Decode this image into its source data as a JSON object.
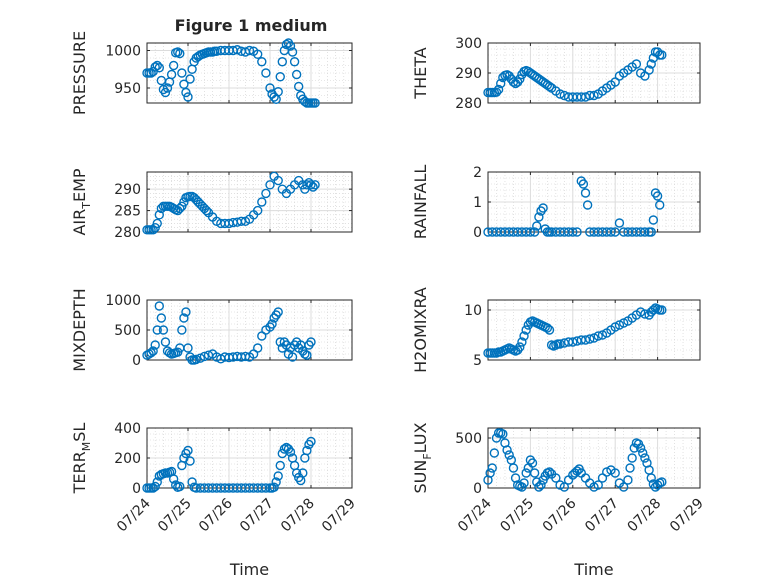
{
  "figure": {
    "title": "Figure 1 medium",
    "marker_color": "#0072BD"
  },
  "chart_data": [
    {
      "type": "scatter",
      "title": "Figure 1 medium",
      "ylabel": "PRESSURE",
      "ylabel_sub": "",
      "ylabel_post": "",
      "xlabel": "",
      "xticks": [
        "07/24",
        "07/25",
        "07/26",
        "07/27",
        "07/28",
        "07/29"
      ],
      "xtick_labels_visible": false,
      "xlim": [
        0,
        5
      ],
      "ylim": [
        930,
        1010
      ],
      "yticks": [
        950,
        1000
      ],
      "grid": true,
      "x": [
        0.0,
        0.05,
        0.1,
        0.15,
        0.2,
        0.25,
        0.3,
        0.35,
        0.4,
        0.45,
        0.5,
        0.55,
        0.6,
        0.65,
        0.7,
        0.75,
        0.8,
        0.85,
        0.9,
        0.95,
        1.0,
        1.05,
        1.1,
        1.15,
        1.2,
        1.25,
        1.3,
        1.35,
        1.4,
        1.45,
        1.5,
        1.55,
        1.6,
        1.65,
        1.7,
        1.8,
        1.9,
        2.0,
        2.1,
        2.2,
        2.3,
        2.4,
        2.5,
        2.6,
        2.7,
        2.8,
        2.9,
        3.0,
        3.05,
        3.1,
        3.15,
        3.2,
        3.25,
        3.3,
        3.35,
        3.4,
        3.45,
        3.5,
        3.55,
        3.6,
        3.65,
        3.7,
        3.75,
        3.8,
        3.85,
        3.9,
        3.95,
        4.0,
        4.05,
        4.1
      ],
      "y": [
        970,
        970,
        970,
        972,
        978,
        980,
        977,
        960,
        948,
        944,
        950,
        958,
        968,
        980,
        997,
        998,
        996,
        970,
        955,
        944,
        938,
        962,
        975,
        985,
        990,
        992,
        994,
        995,
        996,
        997,
        998,
        998,
        998,
        999,
        999,
        1000,
        1000,
        1000,
        1000,
        1001,
        999,
        998,
        1000,
        999,
        995,
        985,
        970,
        950,
        942,
        938,
        935,
        945,
        965,
        985,
        1000,
        1008,
        1010,
        1006,
        998,
        985,
        968,
        952,
        940,
        935,
        932,
        930,
        930,
        930,
        930,
        930
      ]
    },
    {
      "type": "scatter",
      "title": "",
      "ylabel": "THETA",
      "ylabel_sub": "",
      "ylabel_post": "",
      "xlabel": "",
      "xticks": [
        "07/24",
        "07/25",
        "07/26",
        "07/27",
        "07/28",
        "07/29"
      ],
      "xtick_labels_visible": false,
      "xlim": [
        0,
        5
      ],
      "ylim": [
        280,
        300
      ],
      "yticks": [
        280,
        290,
        300
      ],
      "grid": true,
      "x": [
        0.0,
        0.05,
        0.1,
        0.15,
        0.2,
        0.25,
        0.3,
        0.35,
        0.4,
        0.45,
        0.5,
        0.55,
        0.6,
        0.65,
        0.7,
        0.75,
        0.8,
        0.85,
        0.9,
        0.95,
        1.0,
        1.05,
        1.1,
        1.15,
        1.2,
        1.25,
        1.3,
        1.35,
        1.4,
        1.45,
        1.5,
        1.6,
        1.7,
        1.8,
        1.9,
        2.0,
        2.1,
        2.2,
        2.3,
        2.4,
        2.5,
        2.6,
        2.7,
        2.8,
        2.9,
        3.0,
        3.1,
        3.2,
        3.3,
        3.4,
        3.5,
        3.6,
        3.7,
        3.8,
        3.85,
        3.9,
        3.95,
        4.0,
        4.05,
        4.1
      ],
      "y": [
        283.5,
        283.5,
        283.5,
        283.5,
        283.6,
        284.5,
        286.5,
        288.5,
        289.2,
        289.4,
        289,
        288,
        287,
        286.5,
        287,
        288,
        289.5,
        290.5,
        290.8,
        290.5,
        290,
        289.5,
        289,
        288.5,
        288,
        287.5,
        287,
        286.5,
        286,
        285.5,
        285,
        284,
        283,
        282.5,
        282,
        282,
        282,
        282,
        282,
        282.5,
        282.5,
        283,
        284,
        285,
        286,
        287,
        289,
        290,
        291,
        292,
        293,
        290,
        289,
        291,
        293,
        295,
        297,
        297,
        296,
        296
      ]
    },
    {
      "type": "scatter",
      "title": "",
      "ylabel": "AIR",
      "ylabel_sub": "T",
      "ylabel_post": "EMP",
      "xlabel": "",
      "xticks": [
        "07/24",
        "07/25",
        "07/26",
        "07/27",
        "07/28",
        "07/29"
      ],
      "xtick_labels_visible": false,
      "xlim": [
        0,
        5
      ],
      "ylim": [
        280,
        294
      ],
      "yticks": [
        280,
        285,
        290
      ],
      "grid": true,
      "x": [
        0.0,
        0.05,
        0.1,
        0.15,
        0.2,
        0.25,
        0.3,
        0.35,
        0.4,
        0.45,
        0.5,
        0.55,
        0.6,
        0.65,
        0.7,
        0.75,
        0.8,
        0.85,
        0.9,
        0.95,
        1.0,
        1.05,
        1.1,
        1.15,
        1.2,
        1.25,
        1.3,
        1.35,
        1.4,
        1.45,
        1.5,
        1.6,
        1.7,
        1.8,
        1.9,
        2.0,
        2.1,
        2.2,
        2.3,
        2.4,
        2.5,
        2.6,
        2.7,
        2.8,
        2.9,
        3.0,
        3.1,
        3.2,
        3.3,
        3.4,
        3.5,
        3.6,
        3.7,
        3.8,
        3.85,
        3.9,
        3.95,
        4.0,
        4.05,
        4.1
      ],
      "y": [
        280.5,
        280.5,
        280.5,
        280.5,
        281,
        282,
        284,
        285.5,
        286,
        286,
        286,
        286,
        285.8,
        285.5,
        285.2,
        285,
        285.5,
        286,
        287,
        288,
        288.2,
        288.3,
        288.3,
        288,
        287.5,
        287,
        286.5,
        286,
        285.5,
        285,
        284.5,
        283.5,
        282.5,
        282,
        282,
        282,
        282.2,
        282.3,
        282.5,
        282.5,
        283,
        284,
        285,
        287,
        289,
        291,
        293,
        292,
        290,
        289,
        290,
        291,
        292,
        291,
        290,
        291,
        291.5,
        291,
        290.5,
        291
      ]
    },
    {
      "type": "scatter",
      "title": "",
      "ylabel": "RAINFALL",
      "ylabel_sub": "",
      "ylabel_post": "",
      "xlabel": "",
      "xticks": [
        "07/24",
        "07/25",
        "07/26",
        "07/27",
        "07/28",
        "07/29"
      ],
      "xtick_labels_visible": false,
      "xlim": [
        0,
        5
      ],
      "ylim": [
        0,
        2
      ],
      "yticks": [
        0,
        1,
        2
      ],
      "grid": true,
      "x": [
        0.0,
        0.1,
        0.2,
        0.3,
        0.4,
        0.5,
        0.6,
        0.7,
        0.8,
        0.9,
        1.0,
        1.1,
        1.15,
        1.2,
        1.25,
        1.3,
        1.35,
        1.4,
        1.45,
        1.5,
        1.6,
        1.7,
        1.8,
        1.9,
        2.0,
        2.1,
        2.2,
        2.25,
        2.3,
        2.35,
        2.4,
        2.5,
        2.6,
        2.7,
        2.8,
        2.9,
        3.0,
        3.1,
        3.2,
        3.3,
        3.4,
        3.5,
        3.6,
        3.7,
        3.8,
        3.85,
        3.9,
        3.95,
        4.0,
        4.05
      ],
      "y": [
        0,
        0,
        0,
        0,
        0,
        0,
        0,
        0,
        0,
        0,
        0,
        0,
        0.2,
        0.5,
        0.7,
        0.8,
        0.1,
        0,
        0,
        0,
        0,
        0,
        0,
        0,
        0,
        0,
        1.7,
        1.6,
        1.3,
        0.9,
        0,
        0,
        0,
        0,
        0,
        0,
        0,
        0.3,
        0,
        0,
        0,
        0,
        0,
        0,
        0,
        0,
        0.4,
        1.3,
        1.2,
        0.9
      ]
    },
    {
      "type": "scatter",
      "title": "",
      "ylabel": "MIXDEPTH",
      "ylabel_sub": "",
      "ylabel_post": "",
      "xlabel": "",
      "xticks": [
        "07/24",
        "07/25",
        "07/26",
        "07/27",
        "07/28",
        "07/29"
      ],
      "xtick_labels_visible": false,
      "xlim": [
        0,
        5
      ],
      "ylim": [
        0,
        1000
      ],
      "yticks": [
        0,
        500,
        1000
      ],
      "grid": true,
      "x": [
        0.0,
        0.05,
        0.1,
        0.15,
        0.2,
        0.25,
        0.3,
        0.35,
        0.4,
        0.45,
        0.5,
        0.55,
        0.6,
        0.65,
        0.7,
        0.75,
        0.8,
        0.85,
        0.9,
        0.95,
        1.0,
        1.05,
        1.1,
        1.15,
        1.2,
        1.3,
        1.4,
        1.5,
        1.6,
        1.7,
        1.8,
        1.9,
        2.0,
        2.1,
        2.2,
        2.3,
        2.4,
        2.5,
        2.6,
        2.7,
        2.8,
        2.9,
        3.0,
        3.05,
        3.1,
        3.15,
        3.2,
        3.25,
        3.3,
        3.35,
        3.4,
        3.45,
        3.5,
        3.55,
        3.6,
        3.65,
        3.7,
        3.75,
        3.8,
        3.85,
        3.9,
        3.95,
        4.0
      ],
      "y": [
        80,
        100,
        120,
        150,
        250,
        500,
        900,
        700,
        500,
        300,
        150,
        120,
        100,
        110,
        120,
        130,
        200,
        500,
        700,
        800,
        200,
        50,
        0,
        0,
        10,
        30,
        60,
        80,
        100,
        50,
        20,
        50,
        40,
        50,
        60,
        50,
        60,
        50,
        100,
        200,
        400,
        500,
        550,
        600,
        700,
        750,
        800,
        300,
        200,
        300,
        250,
        100,
        200,
        50,
        250,
        300,
        200,
        250,
        150,
        100,
        80,
        250,
        300
      ]
    },
    {
      "type": "scatter",
      "title": "",
      "ylabel": "H2OMIXRA",
      "ylabel_sub": "",
      "ylabel_post": "",
      "xlabel": "",
      "xticks": [
        "07/24",
        "07/25",
        "07/26",
        "07/27",
        "07/28",
        "07/29"
      ],
      "xtick_labels_visible": false,
      "xlim": [
        0,
        5
      ],
      "ylim": [
        5,
        11
      ],
      "yticks": [
        5,
        10
      ],
      "grid": true,
      "x": [
        0.0,
        0.05,
        0.1,
        0.15,
        0.2,
        0.25,
        0.3,
        0.35,
        0.4,
        0.45,
        0.5,
        0.55,
        0.6,
        0.65,
        0.7,
        0.75,
        0.8,
        0.85,
        0.9,
        0.95,
        1.0,
        1.05,
        1.1,
        1.15,
        1.2,
        1.25,
        1.3,
        1.35,
        1.4,
        1.45,
        1.5,
        1.55,
        1.6,
        1.65,
        1.7,
        1.8,
        1.9,
        2.0,
        2.1,
        2.2,
        2.3,
        2.4,
        2.5,
        2.6,
        2.7,
        2.8,
        2.9,
        3.0,
        3.1,
        3.2,
        3.3,
        3.4,
        3.5,
        3.6,
        3.7,
        3.8,
        3.85,
        3.9,
        3.95,
        4.0,
        4.05,
        4.1
      ],
      "y": [
        5.7,
        5.7,
        5.7,
        5.7,
        5.7,
        5.8,
        5.8,
        5.9,
        6,
        6.1,
        6.2,
        6.1,
        6,
        5.9,
        6,
        6.3,
        6.8,
        7.4,
        8,
        8.5,
        8.8,
        8.9,
        8.8,
        8.7,
        8.6,
        8.5,
        8.4,
        8.3,
        8.2,
        8,
        6.5,
        6.4,
        6.5,
        6.6,
        6.6,
        6.7,
        6.8,
        6.8,
        6.9,
        7,
        7,
        7.1,
        7.2,
        7.4,
        7.5,
        7.7,
        8,
        8.3,
        8.5,
        8.7,
        8.9,
        9.2,
        9.5,
        9.8,
        9.6,
        9.5,
        9.8,
        10,
        10.2,
        10.1,
        10,
        10
      ]
    },
    {
      "type": "scatter",
      "title": "",
      "ylabel": "TERR",
      "ylabel_sub": "M",
      "ylabel_post": "SL",
      "xlabel": "Time",
      "xticks": [
        "07/24",
        "07/25",
        "07/26",
        "07/27",
        "07/28",
        "07/29"
      ],
      "xtick_labels_visible": true,
      "xlim": [
        0,
        5
      ],
      "ylim": [
        0,
        400
      ],
      "yticks": [
        0,
        200,
        400
      ],
      "grid": true,
      "x": [
        0.0,
        0.05,
        0.1,
        0.15,
        0.2,
        0.25,
        0.3,
        0.35,
        0.4,
        0.45,
        0.5,
        0.55,
        0.6,
        0.65,
        0.7,
        0.75,
        0.8,
        0.85,
        0.9,
        0.95,
        1.0,
        1.05,
        1.1,
        1.15,
        1.2,
        1.3,
        1.4,
        1.5,
        1.6,
        1.7,
        1.8,
        1.9,
        2.0,
        2.1,
        2.2,
        2.3,
        2.4,
        2.5,
        2.6,
        2.7,
        2.8,
        2.9,
        3.0,
        3.05,
        3.1,
        3.15,
        3.2,
        3.25,
        3.3,
        3.35,
        3.4,
        3.45,
        3.5,
        3.55,
        3.6,
        3.65,
        3.7,
        3.75,
        3.8,
        3.85,
        3.9,
        3.95,
        4.0
      ],
      "y": [
        0,
        0,
        0,
        0,
        10,
        40,
        80,
        90,
        95,
        100,
        100,
        105,
        110,
        60,
        20,
        5,
        10,
        150,
        200,
        230,
        250,
        180,
        40,
        5,
        0,
        0,
        0,
        0,
        0,
        0,
        0,
        0,
        0,
        0,
        0,
        0,
        0,
        0,
        0,
        0,
        0,
        0,
        0,
        0,
        5,
        40,
        80,
        150,
        230,
        260,
        270,
        260,
        240,
        200,
        150,
        100,
        70,
        50,
        100,
        200,
        250,
        290,
        310
      ]
    },
    {
      "type": "scatter",
      "title": "",
      "ylabel": "SUN",
      "ylabel_sub": "F",
      "ylabel_post": "LUX",
      "xlabel": "Time",
      "xticks": [
        "07/24",
        "07/25",
        "07/26",
        "07/27",
        "07/28",
        "07/29"
      ],
      "xtick_labels_visible": true,
      "xlim": [
        0,
        5
      ],
      "ylim": [
        0,
        600
      ],
      "yticks": [
        0,
        500
      ],
      "grid": true,
      "x": [
        0.0,
        0.05,
        0.1,
        0.15,
        0.2,
        0.25,
        0.3,
        0.35,
        0.4,
        0.45,
        0.5,
        0.55,
        0.6,
        0.65,
        0.7,
        0.75,
        0.8,
        0.85,
        0.9,
        0.95,
        1.0,
        1.05,
        1.1,
        1.15,
        1.2,
        1.25,
        1.3,
        1.35,
        1.4,
        1.45,
        1.5,
        1.6,
        1.7,
        1.8,
        1.9,
        2.0,
        2.05,
        2.1,
        2.15,
        2.2,
        2.3,
        2.4,
        2.5,
        2.6,
        2.7,
        2.8,
        2.9,
        3.0,
        3.1,
        3.2,
        3.3,
        3.35,
        3.4,
        3.45,
        3.5,
        3.55,
        3.6,
        3.65,
        3.7,
        3.75,
        3.8,
        3.85,
        3.9,
        3.95,
        4.0,
        4.05,
        4.1
      ],
      "y": [
        80,
        150,
        200,
        350,
        500,
        550,
        550,
        540,
        450,
        380,
        330,
        280,
        200,
        100,
        30,
        20,
        10,
        50,
        150,
        200,
        280,
        250,
        150,
        60,
        10,
        30,
        80,
        120,
        150,
        160,
        140,
        100,
        30,
        10,
        80,
        130,
        150,
        170,
        190,
        150,
        100,
        50,
        10,
        30,
        100,
        160,
        180,
        150,
        50,
        10,
        80,
        200,
        300,
        400,
        450,
        440,
        400,
        350,
        300,
        250,
        180,
        100,
        40,
        10,
        30,
        50,
        60
      ]
    }
  ]
}
